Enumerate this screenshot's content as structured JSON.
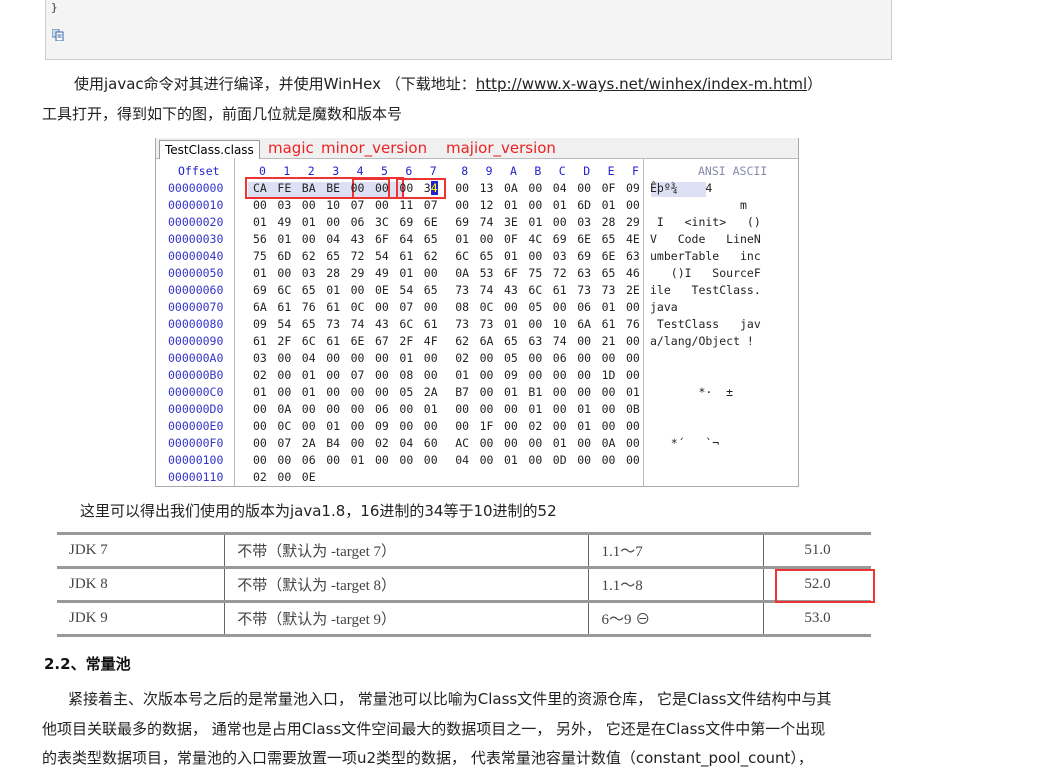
{
  "code_block": {
    "closing_brace": "}",
    "copy_icon": "copy-icon"
  },
  "intro": {
    "line1_text": "使用javac命令对其进行编译，并使用WinHex （下载地址：",
    "link": "http://www.x-ways.net/winhex/index-m.html",
    "line1_end": "）",
    "line2": "工具打开，得到如下的图，前面几位就是魔数和版本号"
  },
  "hexview": {
    "tab": "TestClass.class",
    "offset_header": "Offset",
    "col_headers": [
      "0",
      "1",
      "2",
      "3",
      "4",
      "5",
      "6",
      "7",
      "8",
      "9",
      "A",
      "B",
      "C",
      "D",
      "E",
      "F"
    ],
    "ascii_header": "ANSI ASCII",
    "annotations": {
      "magic": "magic",
      "minor": "minor_version",
      "major": "majior_version"
    },
    "rows": [
      {
        "offset": "00000000",
        "bytes": "CA FE BA BE 00 00 00 34 00 13 0A 00 04 00 0F 09",
        "ascii": "Êþº¾    4"
      },
      {
        "offset": "00000010",
        "bytes": "00 03 00 10 07 00 11 07 00 12 01 00 01 6D 01 00",
        "ascii": "             m"
      },
      {
        "offset": "00000020",
        "bytes": "01 49 01 00 06 3C 69 6E 69 74 3E 01 00 03 28 29",
        "ascii": " I   <init>   ()"
      },
      {
        "offset": "00000030",
        "bytes": "56 01 00 04 43 6F 64 65 01 00 0F 4C 69 6E 65 4E",
        "ascii": "V   Code   LineN"
      },
      {
        "offset": "00000040",
        "bytes": "75 6D 62 65 72 54 61 62 6C 65 01 00 03 69 6E 63",
        "ascii": "umberTable   inc"
      },
      {
        "offset": "00000050",
        "bytes": "01 00 03 28 29 49 01 00 0A 53 6F 75 72 63 65 46",
        "ascii": "   ()I   SourceF"
      },
      {
        "offset": "00000060",
        "bytes": "69 6C 65 01 00 0E 54 65 73 74 43 6C 61 73 73 2E",
        "ascii": "ile   TestClass."
      },
      {
        "offset": "00000070",
        "bytes": "6A 61 76 61 0C 00 07 00 08 0C 00 05 00 06 01 00",
        "ascii": "java"
      },
      {
        "offset": "00000080",
        "bytes": "09 54 65 73 74 43 6C 61 73 73 01 00 10 6A 61 76",
        "ascii": " TestClass   jav"
      },
      {
        "offset": "00000090",
        "bytes": "61 2F 6C 61 6E 67 2F 4F 62 6A 65 63 74 00 21 00",
        "ascii": "a/lang/Object !"
      },
      {
        "offset": "000000A0",
        "bytes": "03 00 04 00 00 00 01 00 02 00 05 00 06 00 00 00",
        "ascii": ""
      },
      {
        "offset": "000000B0",
        "bytes": "02 00 01 00 07 00 08 00 01 00 09 00 00 00 1D 00",
        "ascii": ""
      },
      {
        "offset": "000000C0",
        "bytes": "01 00 01 00 00 00 05 2A B7 00 01 B1 00 00 00 01",
        "ascii": "       *·  ±"
      },
      {
        "offset": "000000D0",
        "bytes": "00 0A 00 00 00 06 00 01 00 00 00 01 00 01 00 0B",
        "ascii": ""
      },
      {
        "offset": "000000E0",
        "bytes": "00 0C 00 01 00 09 00 00 00 1F 00 02 00 01 00 00",
        "ascii": ""
      },
      {
        "offset": "000000F0",
        "bytes": "00 07 2A B4 00 02 04 60 AC 00 00 00 01 00 0A 00",
        "ascii": "   *´   `¬"
      },
      {
        "offset": "00000100",
        "bytes": "00 00 06 00 01 00 00 00 04 00 01 00 0D 00 00 00",
        "ascii": ""
      },
      {
        "offset": "00000110",
        "bytes": "02 00 0E",
        "ascii": ""
      }
    ]
  },
  "conclusion": "这里可以得出我们使用的版本为java1.8，16进制的34等于10进制的52",
  "jdk_table": {
    "rows": [
      {
        "jdk": "JDK 7",
        "target": "不带（默认为 -target 7）",
        "range": "1.1～7",
        "version": "51.0"
      },
      {
        "jdk": "JDK 8",
        "target": "不带（默认为 -target 8）",
        "range": "1.1～8",
        "version": "52.0"
      },
      {
        "jdk": "JDK 9",
        "target": "不带（默认为 -target 9）",
        "range": "6～9 ⊖",
        "version": "53.0"
      }
    ],
    "highlight_color": "#e33333"
  },
  "section": {
    "heading": "2.2、常量池",
    "para": [
      "紧接着主、次版本号之后的是常量池入口， 常量池可以比喻为Class文件里的资源仓库， 它是Class文件结构中与其",
      "他项目关联最多的数据， 通常也是占用Class文件空间最大的数据项目之一， 另外， 它还是在Class文件中第一个出现",
      "的表类型数据项目，常量池的入口需要放置一项u2类型的数据， 代表常量池容量计数值（constant_pool_count），"
    ]
  }
}
